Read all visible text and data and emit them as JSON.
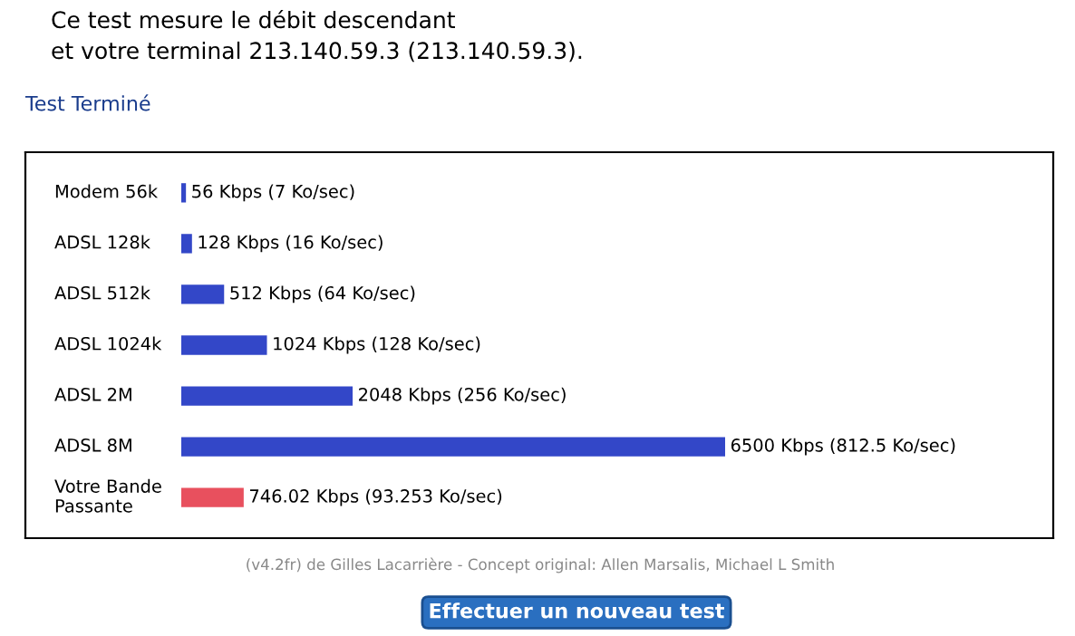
{
  "chart_data": {
    "type": "bar",
    "orientation": "horizontal",
    "title": "Ce test mesure le débit descendant",
    "subtitle": "et votre terminal 213.140.59.3 (213.140.59.3).",
    "categories": [
      "Modem 56k",
      "ADSL 128k",
      "ADSL 512k",
      "ADSL 1024k",
      "ADSL 2M",
      "ADSL 8M",
      "Votre Bande\nPassante"
    ],
    "values": [
      56,
      128,
      512,
      1024,
      2048,
      6500,
      746.02
    ],
    "colors": [
      "#3347c8",
      "#3347c8",
      "#3347c8",
      "#3347c8",
      "#3347c8",
      "#3347c8",
      "#e8505e"
    ],
    "value_labels": [
      "56 Kbps (7 Ko/sec)",
      "128 Kbps (16 Ko/sec)",
      "512 Kbps (64 Ko/sec)",
      "1024 Kbps (128 Ko/sec)",
      "2048 Kbps (256 Ko/sec)",
      "6500 Kbps (812.5 Ko/sec)",
      "746.02 Kbps (93.253 Ko/sec)"
    ],
    "annotations": [
      "Test Terminé",
      "(v4.2fr) de Gilles Lacarrière - Concept original: Allen Marsalis, Michael L Smith",
      "Effectuer un nouveau test"
    ],
    "data_labels": false
  }
}
